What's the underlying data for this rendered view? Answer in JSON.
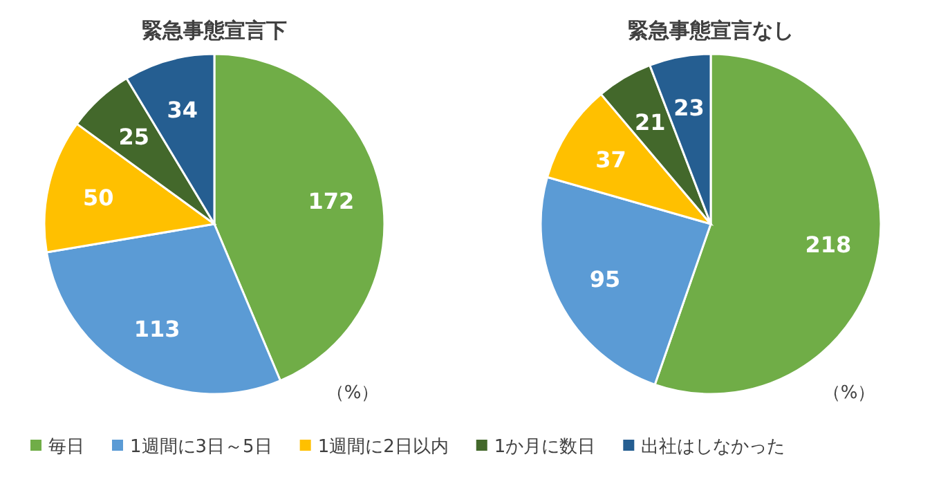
{
  "chart_data": [
    {
      "type": "pie",
      "title": "緊急事態宣言下",
      "categories": [
        "毎日",
        "1週間に3日～5日",
        "1週間に2日以内",
        "1か月に数日",
        "出社はしなかった"
      ],
      "values": [
        172,
        113,
        50,
        25,
        34
      ],
      "colors": [
        "#70ad47",
        "#5b9bd5",
        "#ffc000",
        "#43682b",
        "#255e91"
      ],
      "data_labels": true,
      "legend": "bottom",
      "annotations": [
        "（%）"
      ]
    },
    {
      "type": "pie",
      "title": "緊急事態宣言なし",
      "categories": [
        null,
        null,
        null,
        null,
        null
      ],
      "values": [
        218,
        95,
        37,
        21,
        23
      ],
      "colors": [
        "#70ad47",
        "#5b9bd5",
        "#ffc000",
        "#43682b",
        "#255e91"
      ],
      "data_labels": true,
      "annotations": [
        "（%）"
      ]
    }
  ]
}
